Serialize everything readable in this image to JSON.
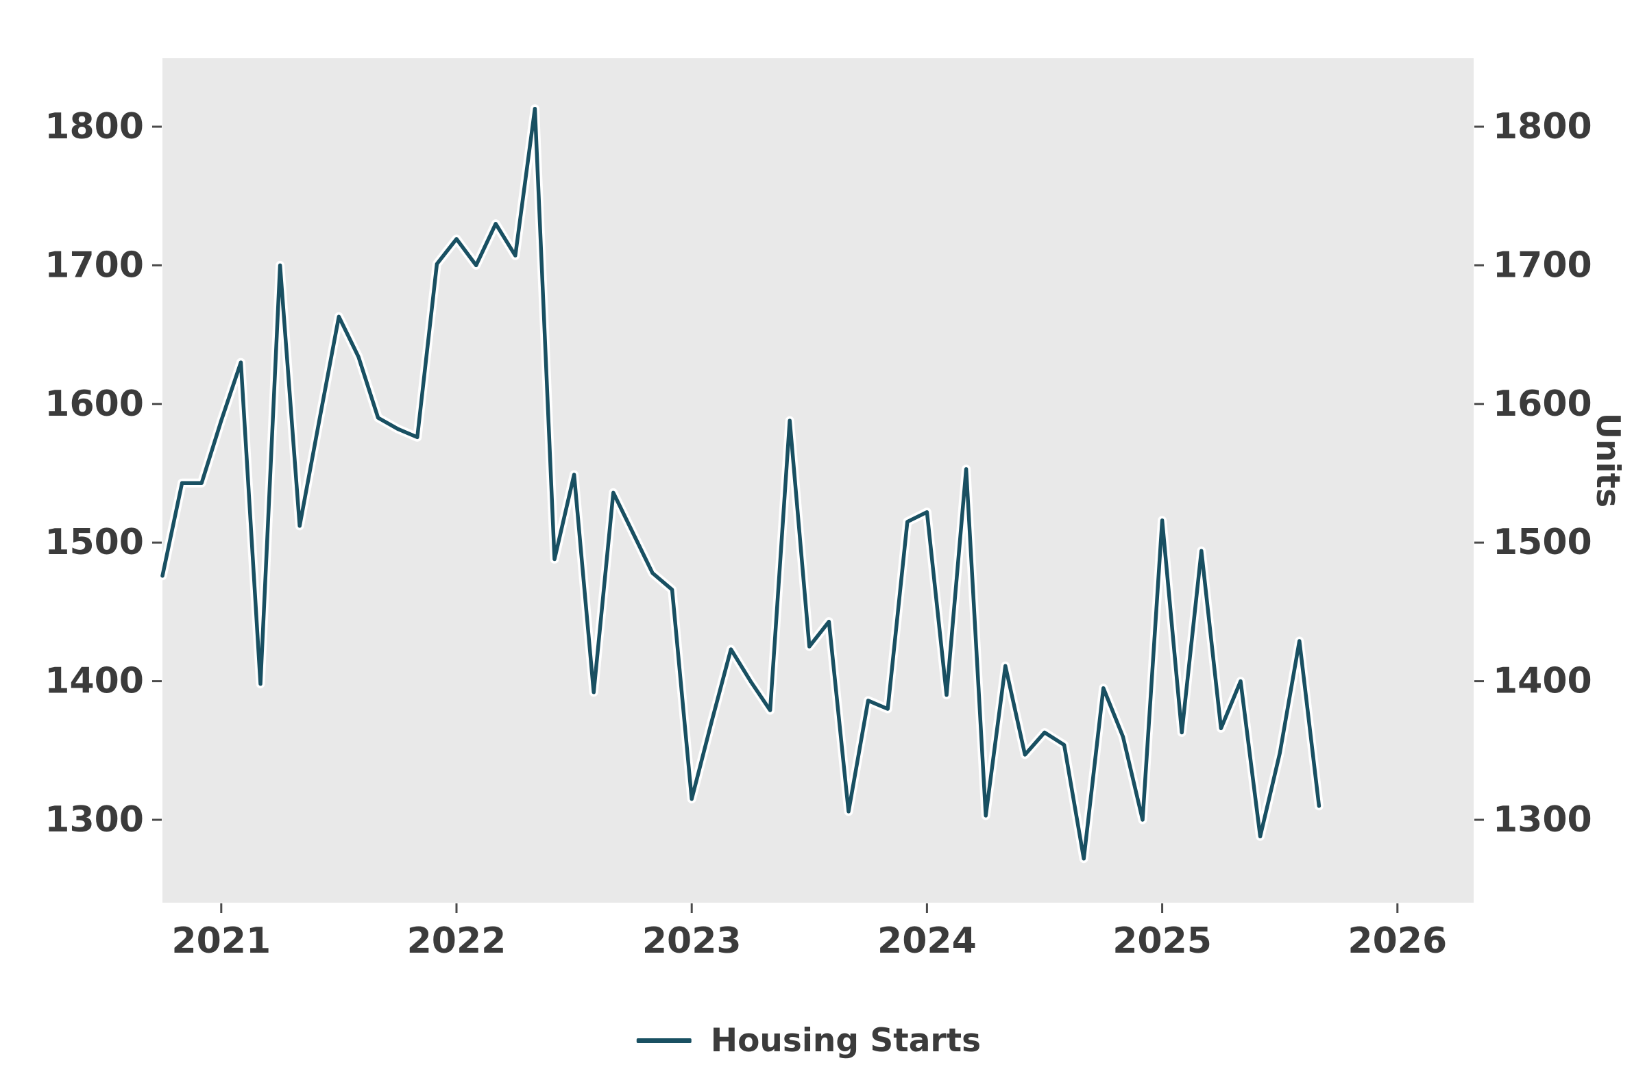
{
  "chart_data": {
    "type": "line",
    "title": "",
    "xlabel": "",
    "ylabel_right": "Units",
    "legend_position": "bottom-center",
    "grid": false,
    "plot_bg": "#e9e9e9",
    "tick_label_color": "#3b3b3b",
    "tick_mark_color": "#4a4a4a",
    "halo_color": "#ffffff",
    "y_tick_values": [
      1800,
      1700,
      1600,
      1500,
      1400,
      1300
    ],
    "x_tick_labels": [
      "2021",
      "2022",
      "2023",
      "2024",
      "2025",
      "2026"
    ],
    "ylim": [
      1240,
      1850
    ],
    "xlim": [
      "2020-09",
      "2026-04"
    ],
    "series": [
      {
        "name": "Housing Starts",
        "color": "#195062",
        "x": [
          "2020-10",
          "2020-11",
          "2020-12",
          "2021-01",
          "2021-02",
          "2021-03",
          "2021-04",
          "2021-05",
          "2021-06",
          "2021-07",
          "2021-08",
          "2021-09",
          "2021-10",
          "2021-11",
          "2021-12",
          "2022-01",
          "2022-02",
          "2022-03",
          "2022-04",
          "2022-05",
          "2022-06",
          "2022-07",
          "2022-08",
          "2022-09",
          "2022-10",
          "2022-11",
          "2022-12",
          "2023-01",
          "2023-02",
          "2023-03",
          "2023-04",
          "2023-05",
          "2023-06",
          "2023-07",
          "2023-08",
          "2023-09",
          "2023-10",
          "2023-11",
          "2023-12",
          "2024-01",
          "2024-02",
          "2024-03",
          "2024-04",
          "2024-05",
          "2024-06",
          "2024-07",
          "2024-08",
          "2024-09",
          "2024-10",
          "2024-11",
          "2024-12",
          "2025-01",
          "2025-02",
          "2025-03",
          "2025-04",
          "2025-05",
          "2025-06",
          "2025-07",
          "2025-08",
          "2025-09"
        ],
        "values": [
          1476,
          1543,
          1543,
          1588,
          1630,
          1398,
          1700,
          1512,
          1588,
          1663,
          1634,
          1590,
          1582,
          1576,
          1701,
          1719,
          1700,
          1730,
          1707,
          1813,
          1488,
          1549,
          1392,
          1536,
          1507,
          1478,
          1466,
          1315,
          1370,
          1423,
          1400,
          1379,
          1588,
          1425,
          1443,
          1306,
          1386,
          1380,
          1515,
          1522,
          1390,
          1553,
          1303,
          1411,
          1347,
          1363,
          1354,
          1272,
          1395,
          1360,
          1300,
          1516,
          1363,
          1494,
          1366,
          1400,
          1288,
          1348,
          1429,
          1310
        ]
      }
    ]
  }
}
